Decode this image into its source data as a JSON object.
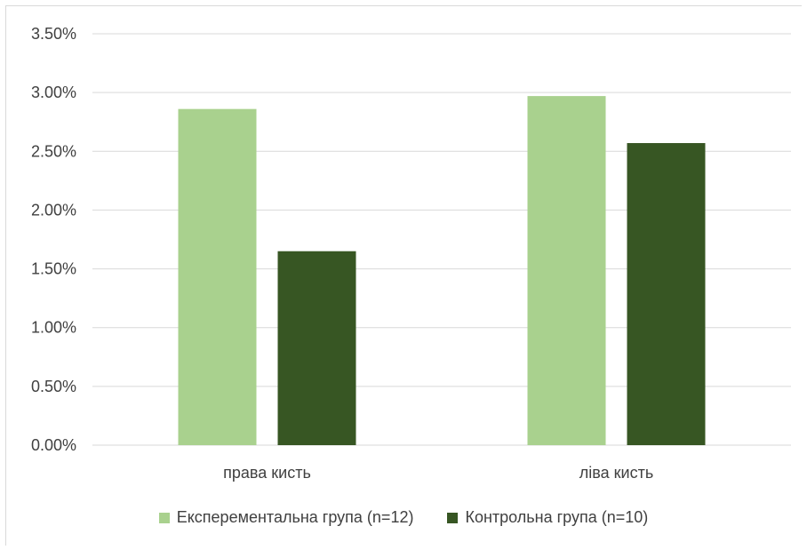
{
  "chart_data": {
    "type": "bar",
    "categories": [
      "права кисть",
      "ліва кисть"
    ],
    "series": [
      {
        "name": "Експерементальна група (n=12)",
        "color": "#a9d18e",
        "values": [
          2.86,
          2.97
        ]
      },
      {
        "name": "Контрольна група (n=10)",
        "color": "#375623",
        "values": [
          1.65,
          2.57
        ]
      }
    ],
    "ylim": [
      0,
      3.5
    ],
    "yticks": [
      "0.00%",
      "0.50%",
      "1.00%",
      "1.50%",
      "2.00%",
      "2.50%",
      "3.00%",
      "3.50%"
    ],
    "grid": true,
    "legend_position": "bottom"
  }
}
